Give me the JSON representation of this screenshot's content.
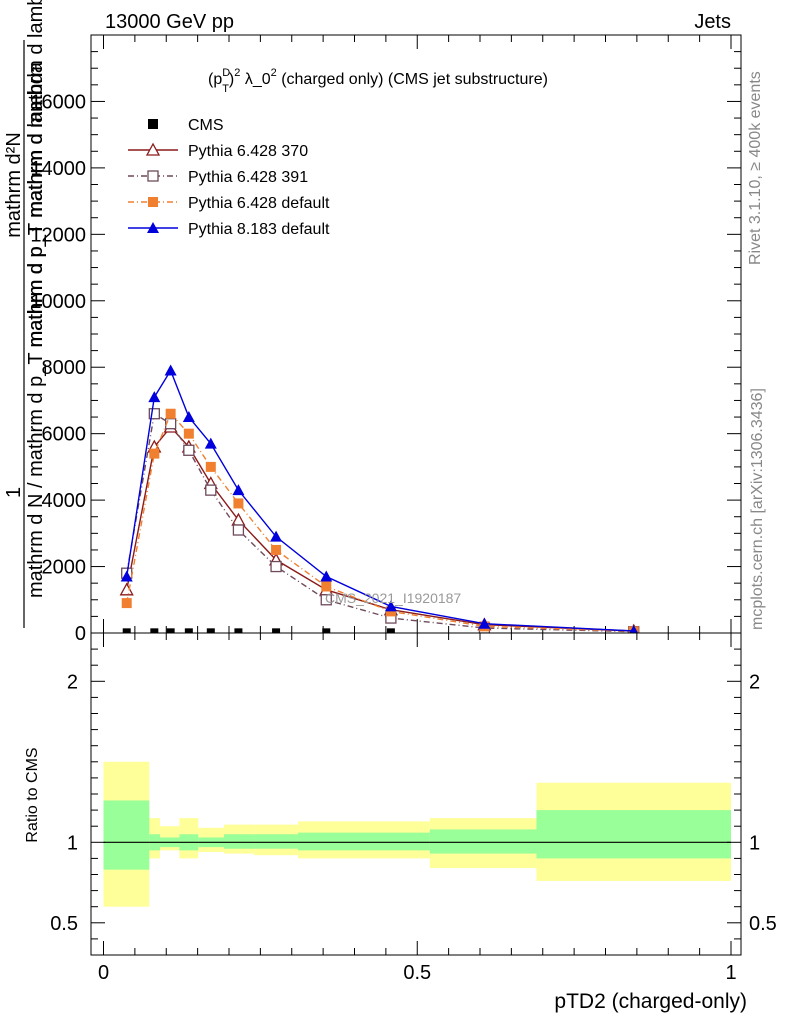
{
  "header": {
    "left": "13000 GeV pp",
    "right": "Jets"
  },
  "side_labels": {
    "rivet": "Rivet 3.1.10, ≥ 400k events",
    "mcplots": "mcplots.cern.ch [arXiv:1306.3436]"
  },
  "watermark": "CMS_2021_I1920187",
  "colors": {
    "cms": "#000000",
    "p370": "#8b1a1a",
    "p391": "#6e4a5a",
    "p6def": "#f08030",
    "p8def": "#0000dd",
    "band_inner": "#99ff99",
    "band_outer": "#ffff99"
  },
  "chart_data": [
    {
      "type": "line",
      "panel": "main",
      "title": "(p_T^D)^2 λ_0^2 (charged only) (CMS jet substructure)",
      "title_parts": {
        "base": "(p",
        "sup_d": "D",
        "sub_t": "T",
        "close": ")",
        "sup2": "2",
        "mid": " λ_0",
        "sup2b": "2",
        "rest": " (charged only) (CMS jet substructure)"
      },
      "ylabel_numerator": "mathrm d²N",
      "ylabel_denominator": "mathrm d p_T mathrm d mathrm d lambda",
      "ylabel_full": "mathrm d N / mathrm d p_T mathrm d p_T mathrm d lambda",
      "ylabel_prefix": "1",
      "xlim": [
        0,
        1
      ],
      "ylim": [
        0,
        18000
      ],
      "yticks": [
        0,
        2000,
        4000,
        6000,
        8000,
        10000,
        12000,
        14000,
        16000
      ],
      "ytick_labels": [
        "0",
        "2000",
        "4000",
        "6000",
        "8000",
        "10000",
        "12000",
        "14000",
        "16000"
      ],
      "series": [
        {
          "name": "CMS",
          "color": "#000000",
          "marker": "square",
          "x": [
            0.037,
            0.081,
            0.107,
            0.136,
            0.171,
            0.215,
            0.275,
            0.355,
            0.458
          ],
          "y": [
            20,
            20,
            20,
            20,
            20,
            20,
            20,
            20,
            20
          ]
        },
        {
          "name": "Pythia 6.428 370",
          "color": "#8b1a1a",
          "marker": "open-triangle",
          "linestyle": "solid",
          "x": [
            0.037,
            0.081,
            0.107,
            0.136,
            0.171,
            0.215,
            0.275,
            0.355,
            0.458,
            0.607,
            0.845
          ],
          "y": [
            1300,
            5600,
            6200,
            5600,
            4500,
            3400,
            2200,
            1300,
            700,
            250,
            60
          ]
        },
        {
          "name": "Pythia 6.428 391",
          "color": "#6e4a5a",
          "marker": "open-square",
          "linestyle": "dashdot",
          "x": [
            0.037,
            0.081,
            0.107,
            0.136,
            0.171,
            0.215,
            0.275,
            0.355,
            0.458,
            0.607,
            0.845
          ],
          "y": [
            1800,
            6600,
            6300,
            5500,
            4300,
            3100,
            2000,
            1000,
            450,
            150,
            40
          ]
        },
        {
          "name": "Pythia 6.428 default",
          "color": "#f08030",
          "marker": "filled-square",
          "linestyle": "dashdot",
          "x": [
            0.037,
            0.081,
            0.107,
            0.136,
            0.171,
            0.215,
            0.275,
            0.355,
            0.458,
            0.607,
            0.845
          ],
          "y": [
            900,
            5400,
            6600,
            6000,
            5000,
            3900,
            2500,
            1400,
            650,
            200,
            50
          ]
        },
        {
          "name": "Pythia 8.183 default",
          "color": "#0000dd",
          "marker": "filled-triangle",
          "linestyle": "solid",
          "x": [
            0.037,
            0.081,
            0.107,
            0.136,
            0.171,
            0.215,
            0.275,
            0.355,
            0.458,
            0.607,
            0.845
          ],
          "y": [
            1700,
            7100,
            7900,
            6500,
            5700,
            4300,
            2900,
            1700,
            800,
            280,
            60
          ]
        }
      ]
    },
    {
      "type": "area",
      "panel": "ratio",
      "ylabel": "Ratio to CMS",
      "xlabel": "pTD2 (charged-only)",
      "xlim": [
        0,
        1
      ],
      "ylim": [
        0.3,
        2.3
      ],
      "xticks": [
        0,
        0.5,
        1
      ],
      "xtick_labels": [
        "0",
        "0.5",
        "1"
      ],
      "yticks": [
        0.5,
        1,
        2
      ],
      "ytick_labels": [
        "0.5",
        "1",
        "2"
      ],
      "bins": [
        {
          "lo": 0.0,
          "hi": 0.073,
          "inner_lo": 0.83,
          "inner_hi": 1.26,
          "outer_lo": 0.6,
          "outer_hi": 1.5
        },
        {
          "lo": 0.073,
          "hi": 0.09,
          "inner_lo": 0.95,
          "inner_hi": 1.05,
          "outer_lo": 0.9,
          "outer_hi": 1.15
        },
        {
          "lo": 0.09,
          "hi": 0.121,
          "inner_lo": 0.97,
          "inner_hi": 1.03,
          "outer_lo": 0.95,
          "outer_hi": 1.1
        },
        {
          "lo": 0.121,
          "hi": 0.151,
          "inner_lo": 0.95,
          "inner_hi": 1.05,
          "outer_lo": 0.9,
          "outer_hi": 1.15
        },
        {
          "lo": 0.151,
          "hi": 0.192,
          "inner_lo": 0.97,
          "inner_hi": 1.03,
          "outer_lo": 0.94,
          "outer_hi": 1.09
        },
        {
          "lo": 0.192,
          "hi": 0.24,
          "inner_lo": 0.96,
          "inner_hi": 1.05,
          "outer_lo": 0.93,
          "outer_hi": 1.11
        },
        {
          "lo": 0.24,
          "hi": 0.31,
          "inner_lo": 0.96,
          "inner_hi": 1.05,
          "outer_lo": 0.92,
          "outer_hi": 1.11
        },
        {
          "lo": 0.31,
          "hi": 0.4,
          "inner_lo": 0.95,
          "inner_hi": 1.06,
          "outer_lo": 0.9,
          "outer_hi": 1.13
        },
        {
          "lo": 0.4,
          "hi": 0.52,
          "inner_lo": 0.95,
          "inner_hi": 1.06,
          "outer_lo": 0.9,
          "outer_hi": 1.13
        },
        {
          "lo": 0.52,
          "hi": 0.69,
          "inner_lo": 0.93,
          "inner_hi": 1.08,
          "outer_lo": 0.84,
          "outer_hi": 1.15
        },
        {
          "lo": 0.69,
          "hi": 1.0,
          "inner_lo": 0.9,
          "inner_hi": 1.2,
          "outer_lo": 0.76,
          "outer_hi": 1.37
        }
      ]
    }
  ]
}
